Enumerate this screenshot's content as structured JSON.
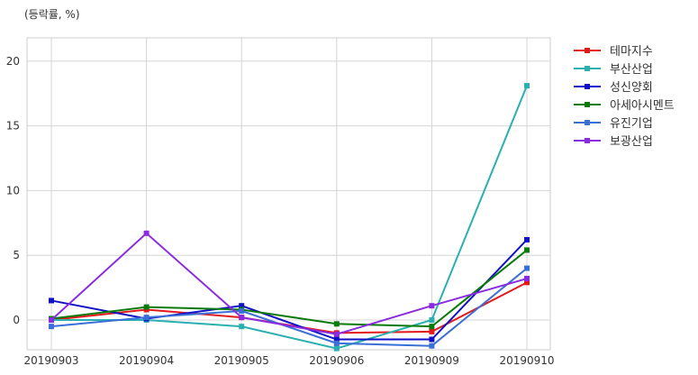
{
  "chart_data": {
    "type": "line",
    "title": "",
    "unit_label": "(등락률, %)",
    "xlabel": "",
    "ylabel": "",
    "categories": [
      "20190903",
      "20190904",
      "20190905",
      "20190906",
      "20190909",
      "20190910"
    ],
    "ylim": [
      -2.3,
      21.8
    ],
    "yticks": [
      0,
      5,
      10,
      15,
      20
    ],
    "grid": true,
    "legend_position": "right",
    "series": [
      {
        "name": "테마지수",
        "color": "#e31a1c",
        "values": [
          0.0,
          0.8,
          0.2,
          -1.0,
          -0.9,
          2.9
        ]
      },
      {
        "name": "부산산업",
        "color": "#2ab0b0",
        "values": [
          0.0,
          0.0,
          -0.5,
          -2.2,
          0.0,
          18.1
        ]
      },
      {
        "name": "성신양회",
        "color": "#1010c8",
        "values": [
          1.5,
          0.1,
          1.1,
          -1.5,
          -1.5,
          6.2
        ]
      },
      {
        "name": "아세아시멘트",
        "color": "#0a7a0a",
        "values": [
          0.1,
          1.0,
          0.8,
          -0.3,
          -0.5,
          5.4
        ]
      },
      {
        "name": "유진기업",
        "color": "#3a6fd8",
        "values": [
          -0.5,
          0.2,
          0.7,
          -1.8,
          -2.0,
          4.0
        ]
      },
      {
        "name": "보광산업",
        "color": "#8a2be2",
        "values": [
          0.0,
          6.7,
          0.2,
          -1.1,
          1.1,
          3.2
        ]
      }
    ]
  }
}
